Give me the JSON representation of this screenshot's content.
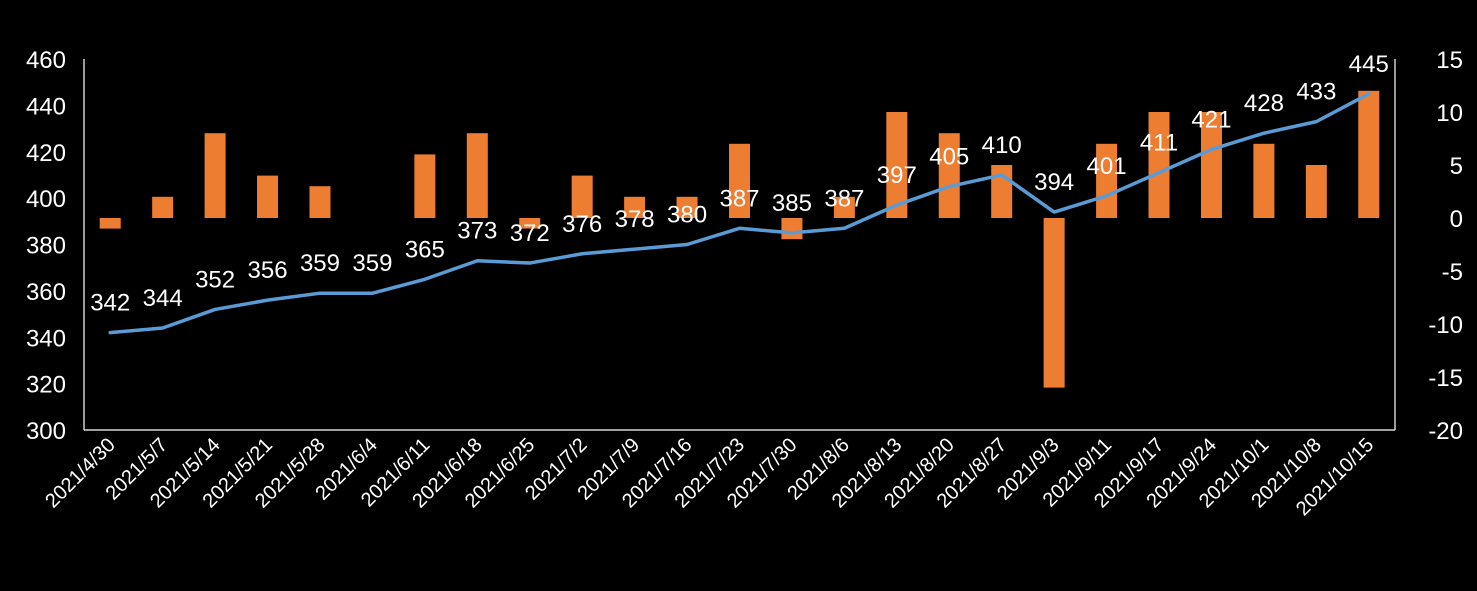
{
  "chart_data": {
    "type": "bar+line",
    "title": "",
    "categories": [
      "2021/4/30",
      "2021/5/7",
      "2021/5/14",
      "2021/5/21",
      "2021/5/28",
      "2021/6/4",
      "2021/6/11",
      "2021/6/18",
      "2021/6/25",
      "2021/7/2",
      "2021/7/9",
      "2021/7/16",
      "2021/7/23",
      "2021/7/30",
      "2021/8/6",
      "2021/8/13",
      "2021/8/20",
      "2021/8/27",
      "2021/9/3",
      "2021/9/11",
      "2021/9/17",
      "2021/9/24",
      "2021/10/1",
      "2021/10/8",
      "2021/10/15"
    ],
    "series": [
      {
        "name": "line",
        "type": "line",
        "axis": "left",
        "color": "#5B9BD5",
        "values": [
          342,
          344,
          352,
          356,
          359,
          359,
          365,
          373,
          372,
          376,
          378,
          380,
          387,
          385,
          387,
          397,
          405,
          410,
          394,
          401,
          411,
          421,
          428,
          433,
          445
        ],
        "data_labels": true
      },
      {
        "name": "bar",
        "type": "bar",
        "axis": "right",
        "color": "#ED7D31",
        "values": [
          -1,
          2,
          8,
          4,
          3,
          0,
          6,
          8,
          -1,
          4,
          2,
          2,
          7,
          -2,
          2,
          10,
          8,
          5,
          -16,
          7,
          10,
          10,
          7,
          5,
          12
        ],
        "data_labels": false
      }
    ],
    "left_axis": {
      "min": 300,
      "max": 460,
      "ticks": [
        300,
        320,
        340,
        360,
        380,
        400,
        420,
        440,
        460
      ]
    },
    "right_axis": {
      "min": -20,
      "max": 15,
      "ticks": [
        -20,
        -15,
        -10,
        -5,
        0,
        5,
        10,
        15
      ]
    },
    "grid": false,
    "legend": "none"
  }
}
